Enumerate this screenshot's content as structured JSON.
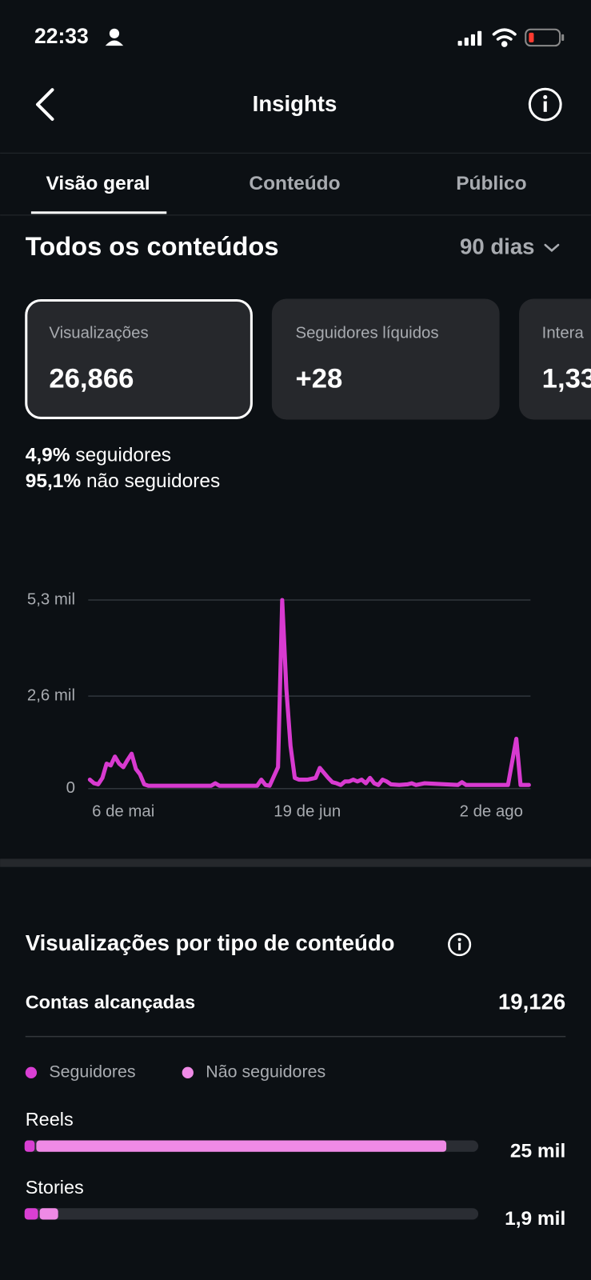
{
  "status_bar": {
    "time": "22:33"
  },
  "header": {
    "title": "Insights"
  },
  "tabs": [
    "Visão geral",
    "Conteúdo",
    "Público"
  ],
  "section": {
    "title": "Todos os conteúdos",
    "period": "90 dias"
  },
  "cards": [
    {
      "label": "Visualizações",
      "value": "26,866"
    },
    {
      "label": "Seguidores líquidos",
      "value": "+28"
    },
    {
      "label": "Intera",
      "value": "1,33"
    }
  ],
  "split": [
    {
      "value": "4,9%",
      "label": "seguidores"
    },
    {
      "value": "95,1%",
      "label": "não seguidores"
    }
  ],
  "reach": {
    "label": "Contas alcançadas",
    "value": "19,126"
  },
  "chart_data": [
    {
      "type": "line",
      "color": "#d83ad0",
      "x": [
        0,
        1,
        2,
        3,
        4,
        5,
        6,
        7,
        8,
        9,
        10,
        11,
        12,
        13,
        14,
        29,
        30,
        31,
        40,
        41,
        42,
        43,
        45,
        46,
        47,
        48,
        49,
        50,
        52,
        54,
        55,
        57,
        58,
        59,
        60,
        61,
        62,
        63,
        64,
        65,
        66,
        67,
        68,
        69,
        70,
        71,
        72,
        74,
        76,
        77,
        78,
        80,
        88,
        89,
        90,
        100,
        102,
        103,
        104,
        105
      ],
      "values": [
        250,
        150,
        120,
        300,
        700,
        650,
        900,
        700,
        600,
        800,
        980,
        550,
        400,
        120,
        80,
        80,
        150,
        80,
        80,
        250,
        100,
        80,
        600,
        5300,
        2800,
        1200,
        300,
        250,
        250,
        300,
        580,
        300,
        180,
        150,
        100,
        200,
        200,
        250,
        200,
        250,
        150,
        300,
        150,
        100,
        250,
        200,
        120,
        100,
        120,
        150,
        100,
        150,
        100,
        180,
        100,
        100,
        1400,
        100,
        100,
        100
      ],
      "xlim": [
        0,
        105
      ],
      "xticks": [
        {
          "value": 8,
          "label": "6 de mai"
        },
        {
          "value": 52,
          "label": "19 de jun"
        },
        {
          "value": 96,
          "label": "2 de ago"
        }
      ],
      "ylim": [
        0,
        5300
      ],
      "yticks": [
        0,
        {
          "value": 2600,
          "label": "2,6 mil"
        },
        {
          "value": 5300,
          "label": "5,3 mil"
        }
      ],
      "grid": true
    },
    {
      "type": "hbar-stacked",
      "title": "Visualizações por tipo de conteúdo",
      "categories": [
        "Reels",
        "Stories"
      ],
      "series": [
        {
          "name": "Seguidores",
          "color": "#d93fd3",
          "values": [
            600,
            800
          ]
        },
        {
          "name": "Não seguidores",
          "color": "#ef8ae6",
          "values": [
            24400,
            1100
          ]
        }
      ],
      "total_labels": [
        "25 mil",
        "1,9 mil"
      ],
      "xlim": [
        0,
        27000
      ]
    }
  ]
}
